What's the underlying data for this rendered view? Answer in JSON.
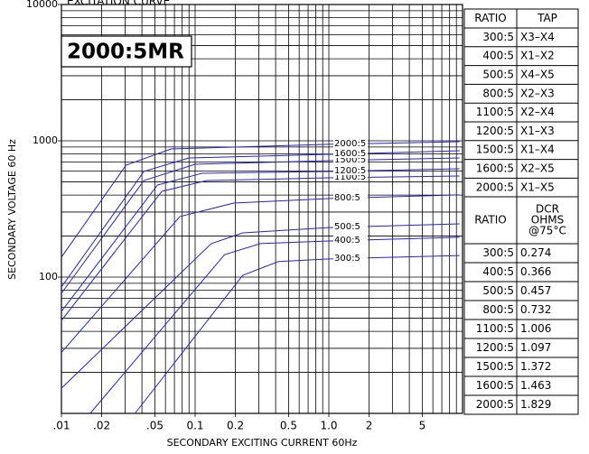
{
  "chart_data": {
    "type": "line",
    "title": "EXCITATION CURVE",
    "annotation": "2000:5MR",
    "xlabel": "SECONDARY EXCITING CURRENT 60Hz",
    "ylabel": "SECONDARY VOLTAGE 60 Hz",
    "xscale": "log",
    "yscale": "log",
    "grid": true,
    "xlim": [
      0.01,
      10
    ],
    "ylim": [
      10,
      10000
    ],
    "xticks": [
      {
        "value": 0.01,
        "label": ".01"
      },
      {
        "value": 0.02,
        "label": ".02"
      },
      {
        "value": 0.05,
        "label": ".05"
      },
      0.1,
      0.2,
      0.5,
      {
        "value": 1,
        "label": "1.0"
      },
      2,
      5
    ],
    "yticks": [
      100,
      1000,
      10000
    ],
    "xgrid": [
      0.01,
      0.02,
      0.03,
      0.04,
      0.05,
      0.06,
      0.07,
      0.08,
      0.09,
      0.1,
      0.2,
      0.3,
      0.4,
      0.5,
      0.6,
      0.7,
      0.8,
      0.9,
      1,
      2,
      3,
      4,
      5,
      6,
      7,
      8,
      9,
      10
    ],
    "ygrid": [
      10,
      20,
      30,
      40,
      50,
      60,
      70,
      80,
      90,
      100,
      200,
      300,
      400,
      500,
      600,
      700,
      800,
      900,
      1000,
      2000,
      3000,
      4000,
      5000,
      6000,
      7000,
      8000,
      9000,
      10000
    ],
    "series": [
      {
        "name": "300:5",
        "color": "#2323d6",
        "x": [
          0.0355,
          0.227,
          0.42,
          1,
          9.5
        ],
        "values": [
          10,
          103,
          130,
          136,
          144
        ]
      },
      {
        "name": "400:5",
        "color": "#2323d6",
        "x": [
          0.0164,
          0.166,
          0.307,
          1,
          9.5
        ],
        "values": [
          10,
          146,
          176,
          184,
          196
        ]
      },
      {
        "name": "500:5",
        "color": "#2323d6",
        "x": [
          0.01,
          0.132,
          0.227,
          1,
          9.5
        ],
        "values": [
          15.3,
          176,
          211,
          231,
          246
        ]
      },
      {
        "name": "800:5",
        "color": "#2323d6",
        "x": [
          0.01,
          0.0769,
          0.194,
          1,
          9.5
        ],
        "values": [
          28,
          278,
          349,
          377,
          401
        ]
      },
      {
        "name": "1100:5",
        "color": "#2323d6",
        "x": [
          0.01,
          0.0564,
          0.122,
          1,
          9.5
        ],
        "values": [
          48,
          426,
          511,
          535,
          552
        ]
      },
      {
        "name": "1200:5",
        "color": "#2323d6",
        "x": [
          0.01,
          0.0523,
          0.113,
          1,
          9.5
        ],
        "values": [
          56,
          474,
          578,
          596,
          623
        ]
      },
      {
        "name": "1500:5",
        "color": "#2323d6",
        "x": [
          0.01,
          0.0414,
          0.1,
          1,
          9.5
        ],
        "values": [
          76,
          511,
          673,
          715,
          748
        ]
      },
      {
        "name": "1600:5",
        "color": "#2323d6",
        "x": [
          0.01,
          0.0414,
          0.0898,
          1,
          9.5
        ],
        "values": [
          84.6,
          596,
          748,
          795,
          845
        ]
      },
      {
        "name": "2000:5",
        "color": "#2323d6",
        "x": [
          0.01,
          0.0304,
          0.066,
          1,
          9.5
        ],
        "values": [
          140,
          662,
          871,
          942,
          985
        ]
      }
    ]
  },
  "tap_table": {
    "header": [
      "RATIO",
      "TAP"
    ],
    "rows": [
      [
        "300:5",
        "X3–X4"
      ],
      [
        "400:5",
        "X1–X2"
      ],
      [
        "500:5",
        "X4–X5"
      ],
      [
        "800:5",
        "X2–X3"
      ],
      [
        "1100:5",
        "X2–X4"
      ],
      [
        "1200:5",
        "X1–X3"
      ],
      [
        "1500:5",
        "X1–X4"
      ],
      [
        "1600:5",
        "X2–X5"
      ],
      [
        "2000:5",
        "X1–X5"
      ]
    ]
  },
  "dcr_table": {
    "header": [
      "RATIO",
      [
        "DCR",
        "OHMS",
        "@75°C"
      ]
    ],
    "rows": [
      [
        "300:5",
        "0.274"
      ],
      [
        "400:5",
        "0.366"
      ],
      [
        "500:5",
        "0.457"
      ],
      [
        "800:5",
        "0.732"
      ],
      [
        "1100:5",
        "1.006"
      ],
      [
        "1200:5",
        "1.097"
      ],
      [
        "1500:5",
        "1.372"
      ],
      [
        "1600:5",
        "1.463"
      ],
      [
        "2000:5",
        "1.829"
      ]
    ]
  }
}
